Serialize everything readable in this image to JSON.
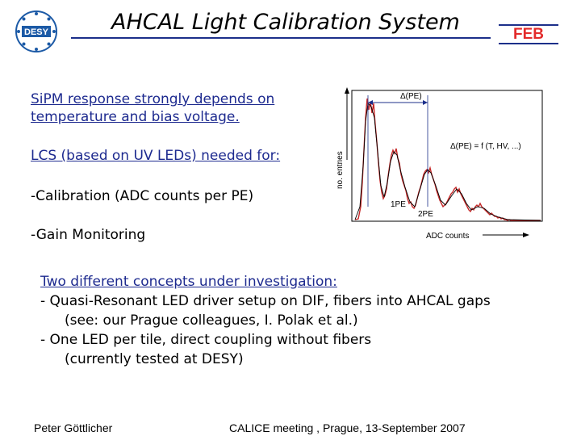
{
  "header": {
    "logo_text": "DESY",
    "title": "AHCAL Light Calibration System",
    "tag": "FEB"
  },
  "intro": {
    "line1": "SiPM response strongly depends on",
    "line2": "temperature and bias voltage.",
    "lcs": "LCS (based on UV LEDs) needed for:",
    "calibration": "-Calibration (ADC counts per PE)",
    "gain": "-Gain Monitoring"
  },
  "plot": {
    "y_label": "no. entries",
    "x_label": "ADC counts",
    "delta_label": "Δ(PE)",
    "formula": "Δ(PE) = f (T, HV, ...)",
    "peak1": "1PE",
    "peak2": "2PE",
    "colors": {
      "data": "#c62828",
      "fit": "#000000"
    }
  },
  "concepts": {
    "heading": "Two different concepts under investigation:",
    "item1": "- Quasi-Resonant LED driver setup on DIF, fibers into AHCAL gaps",
    "item1_note": "(see: our Prague colleagues, I. Polak et al.)",
    "item2": "- One LED per tile, direct coupling without fibers",
    "item2_note": "(currently tested at DESY)"
  },
  "footer": {
    "author": "Peter Göttlicher",
    "event": "CALICE meeting , Prague, 13-September 2007"
  },
  "colors": {
    "accent": "#1c2f8a",
    "feb": "#e32b2b"
  }
}
